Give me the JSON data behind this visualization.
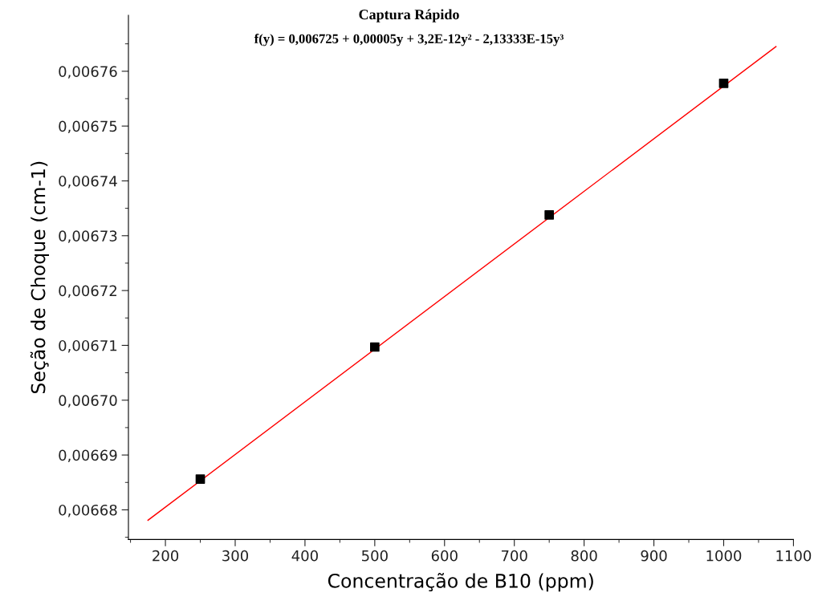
{
  "chart_data": {
    "type": "scatter",
    "title": "Captura Rápido",
    "subtitle": "f(y) = 0,006725 + 0,00005y + 3,2E-12y² - 2,13333E-15y³",
    "xlabel": "Concentração de B10 (ppm)",
    "ylabel": "Seção de Choque (cm-1)",
    "marker": "square",
    "grid": false,
    "legend": false,
    "series": [
      {
        "color": "#000000",
        "x": [
          250,
          500,
          750,
          1000
        ],
        "values": [
          0.0066856,
          0.0067097,
          0.0067338,
          0.0067578
        ]
      },
      {
        "type": "line",
        "color": "#ff0000",
        "marker": "none",
        "line_style": "solid",
        "x": [
          175,
          1075
        ],
        "values": [
          0.0066781,
          0.0067645
        ]
      }
    ],
    "xlim": [
      147,
      1100
    ],
    "xticks": [
      200,
      300,
      400,
      500,
      600,
      700,
      800,
      900,
      1000,
      1100
    ],
    "ylim": [
      0.0066746,
      0.0067702
    ],
    "yticks": [
      {
        "value": 0.00668,
        "label": "0,00668"
      },
      {
        "value": 0.00669,
        "label": "0,00669"
      },
      {
        "value": 0.0067,
        "label": "0,00670"
      },
      {
        "value": 0.00671,
        "label": "0,00671"
      },
      {
        "value": 0.00672,
        "label": "0,00672"
      },
      {
        "value": 0.00673,
        "label": "0,00673"
      },
      {
        "value": 0.00674,
        "label": "0,00674"
      },
      {
        "value": 0.00675,
        "label": "0,00675"
      },
      {
        "value": 0.00676,
        "label": "0,00676"
      }
    ]
  }
}
